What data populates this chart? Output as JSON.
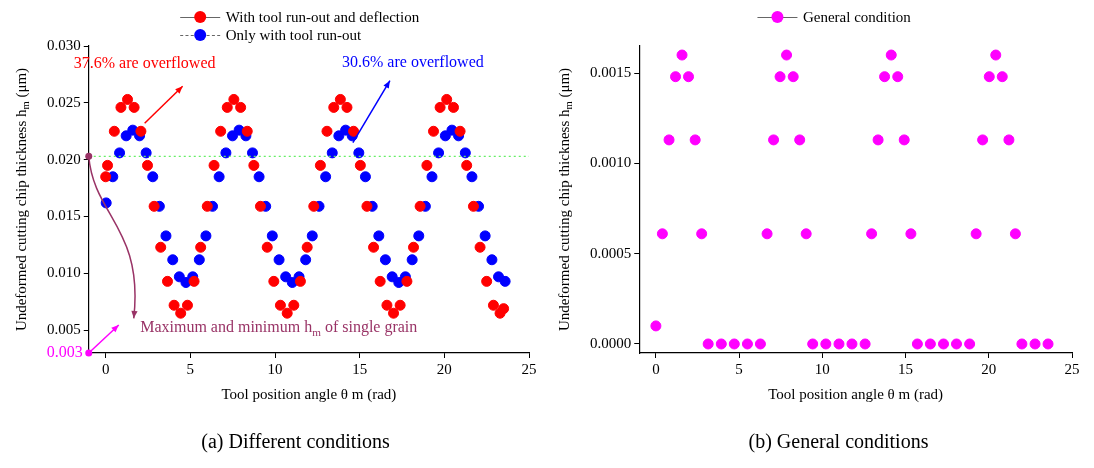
{
  "chart_data": [
    {
      "type": "scatter",
      "title": "(a) Different conditions",
      "xlabel": "Tool position angle θ m (rad)",
      "ylabel": "Undeformed cutting chip thickness h$_{m}$ (μm)",
      "xlim": [
        -1,
        25
      ],
      "xticks": [
        0,
        5,
        10,
        15,
        20,
        25
      ],
      "ylim": [
        0.003,
        0.03
      ],
      "yticks": [
        {
          "value": 0.005,
          "label": "0.005"
        },
        {
          "value": 0.01,
          "label": "0.010"
        },
        {
          "value": 0.015,
          "label": "0.015"
        },
        {
          "value": 0.02,
          "label": "0.020"
        },
        {
          "value": 0.025,
          "label": "0.025"
        },
        {
          "value": 0.03,
          "label": "0.030"
        }
      ],
      "marker": "circle",
      "legend": "top",
      "grid": false,
      "series": [
        {
          "name": "With tool run-out and deflection",
          "color": "#ff0000",
          "x": [
            0,
            0.11,
            0.51,
            0.9,
            1.29,
            1.68,
            2.08,
            2.47,
            2.86,
            3.25,
            3.65,
            4.04,
            4.43,
            4.83,
            5.22,
            5.61,
            6.0,
            6.4,
            6.79,
            7.18,
            7.57,
            7.97,
            8.36,
            8.75,
            9.14,
            9.54,
            9.93,
            10.32,
            10.72,
            11.11,
            11.5,
            11.9,
            12.29,
            12.68,
            13.07,
            13.47,
            13.86,
            14.25,
            14.64,
            15.04,
            15.43,
            15.82,
            16.21,
            16.61,
            17.0,
            17.39,
            17.79,
            18.18,
            18.57,
            18.97,
            19.36,
            19.75,
            20.14,
            20.54,
            20.93,
            21.32,
            21.72,
            22.11,
            22.5,
            22.9,
            23.29,
            23.5
          ],
          "values": [
            0.0185,
            0.0195,
            0.0225,
            0.0246,
            0.0253,
            0.0246,
            0.0225,
            0.0195,
            0.0159,
            0.0123,
            0.0093,
            0.0072,
            0.0065,
            0.0072,
            0.0093,
            0.0123,
            0.0159,
            0.0195,
            0.0225,
            0.0246,
            0.0253,
            0.0246,
            0.0225,
            0.0195,
            0.0159,
            0.0123,
            0.0093,
            0.0072,
            0.0065,
            0.0072,
            0.0093,
            0.0123,
            0.0159,
            0.0195,
            0.0225,
            0.0246,
            0.0253,
            0.0246,
            0.0225,
            0.0195,
            0.0159,
            0.0123,
            0.0093,
            0.0072,
            0.0065,
            0.0072,
            0.0093,
            0.0123,
            0.0159,
            0.0195,
            0.0225,
            0.0246,
            0.0253,
            0.0246,
            0.0225,
            0.0195,
            0.0159,
            0.0123,
            0.0093,
            0.0072,
            0.0065,
            0.0069
          ]
        },
        {
          "name": "Only with tool run-out",
          "color": "#0000ff",
          "x": [
            0.03,
            0.42,
            0.82,
            1.21,
            1.6,
            2.0,
            2.39,
            2.78,
            3.17,
            3.56,
            3.96,
            4.35,
            4.74,
            5.14,
            5.53,
            5.92,
            6.31,
            6.7,
            7.1,
            7.49,
            7.88,
            8.28,
            8.67,
            9.06,
            9.45,
            9.84,
            10.24,
            10.63,
            11.02,
            11.42,
            11.81,
            12.2,
            12.6,
            12.99,
            13.38,
            13.77,
            14.17,
            14.56,
            14.95,
            15.34,
            15.74,
            16.13,
            16.52,
            16.92,
            17.31,
            17.7,
            18.1,
            18.49,
            18.88,
            19.27,
            19.66,
            20.06,
            20.45,
            20.84,
            21.24,
            21.63,
            22.02,
            22.41,
            22.81,
            23.2,
            23.59
          ],
          "values": [
            0.0162,
            0.0185,
            0.0206,
            0.0221,
            0.0226,
            0.0221,
            0.0206,
            0.0185,
            0.0159,
            0.0133,
            0.0112,
            0.0097,
            0.0092,
            0.0097,
            0.0112,
            0.0133,
            0.0159,
            0.0185,
            0.0206,
            0.0221,
            0.0226,
            0.0221,
            0.0206,
            0.0185,
            0.0159,
            0.0133,
            0.0112,
            0.0097,
            0.0092,
            0.0097,
            0.0112,
            0.0133,
            0.0159,
            0.0185,
            0.0206,
            0.0221,
            0.0226,
            0.0221,
            0.0206,
            0.0185,
            0.0159,
            0.0133,
            0.0112,
            0.0097,
            0.0092,
            0.0097,
            0.0112,
            0.0133,
            0.0159,
            0.0185,
            0.0206,
            0.0221,
            0.0226,
            0.0221,
            0.0206,
            0.0185,
            0.0159,
            0.0133,
            0.0112,
            0.0097,
            0.0093
          ]
        }
      ],
      "ref_lines": [
        {
          "axis": "y",
          "value": 0.0203,
          "color": "#66ee66",
          "line_style": "dotted"
        }
      ],
      "annotations": [
        {
          "text": "37.6% are overflowed",
          "x": 2.3,
          "y": 0.0232
        },
        {
          "text": "30.6% are overflowed",
          "x": 14.6,
          "y": 0.0215
        },
        {
          "text": "Maximum and minimum h$_{m}$ of single grain",
          "x": -1,
          "y": 0.0203
        },
        {
          "text": "0.003",
          "x": -1,
          "y": 0.003
        }
      ]
    },
    {
      "type": "scatter",
      "title": "(b) General conditions",
      "xlabel": "Tool position angle θ m (rad)",
      "ylabel": "Undeformed cutting chip thickness h$_{m}$ (μm)",
      "xlim": [
        -1,
        25
      ],
      "xticks": [
        0,
        5,
        10,
        15,
        20,
        25
      ],
      "ylim": [
        -5e-05,
        0.00165
      ],
      "yticks": [
        {
          "value": 0,
          "label": "0.0000"
        },
        {
          "value": 0.0005,
          "label": "0.0005"
        },
        {
          "value": 0.001,
          "label": "0.0010"
        },
        {
          "value": 0.0015,
          "label": "0.0015"
        }
      ],
      "marker": "circle",
      "legend": "top",
      "grid": false,
      "series": [
        {
          "name": "General condition",
          "color": "#ff00ff",
          "x": [
            0,
            0.39,
            0.79,
            1.18,
            1.57,
            1.96,
            2.36,
            2.75,
            3.14,
            3.93,
            4.71,
            5.5,
            6.28,
            6.68,
            7.07,
            7.46,
            7.85,
            8.25,
            8.64,
            9.03,
            9.42,
            10.21,
            11.0,
            11.78,
            12.57,
            12.96,
            13.35,
            13.74,
            14.14,
            14.53,
            14.92,
            15.32,
            15.71,
            16.49,
            17.28,
            18.06,
            18.85,
            19.24,
            19.63,
            20.03,
            20.42,
            20.81,
            21.21,
            21.6,
            21.99,
            22.78,
            23.56
          ],
          "values": [
            0.0001,
            0.00061,
            0.00113,
            0.00148,
            0.0016,
            0.00148,
            0.00113,
            0.00061,
            0,
            0,
            0,
            0,
            0,
            0.00061,
            0.00113,
            0.00148,
            0.0016,
            0.00148,
            0.00113,
            0.00061,
            0,
            0,
            0,
            0,
            0,
            0.00061,
            0.00113,
            0.00148,
            0.0016,
            0.00148,
            0.00113,
            0.00061,
            0,
            0,
            0,
            0,
            0,
            0.00061,
            0.00113,
            0.00148,
            0.0016,
            0.00148,
            0.00113,
            0.00061,
            0,
            0,
            0
          ]
        }
      ]
    }
  ]
}
